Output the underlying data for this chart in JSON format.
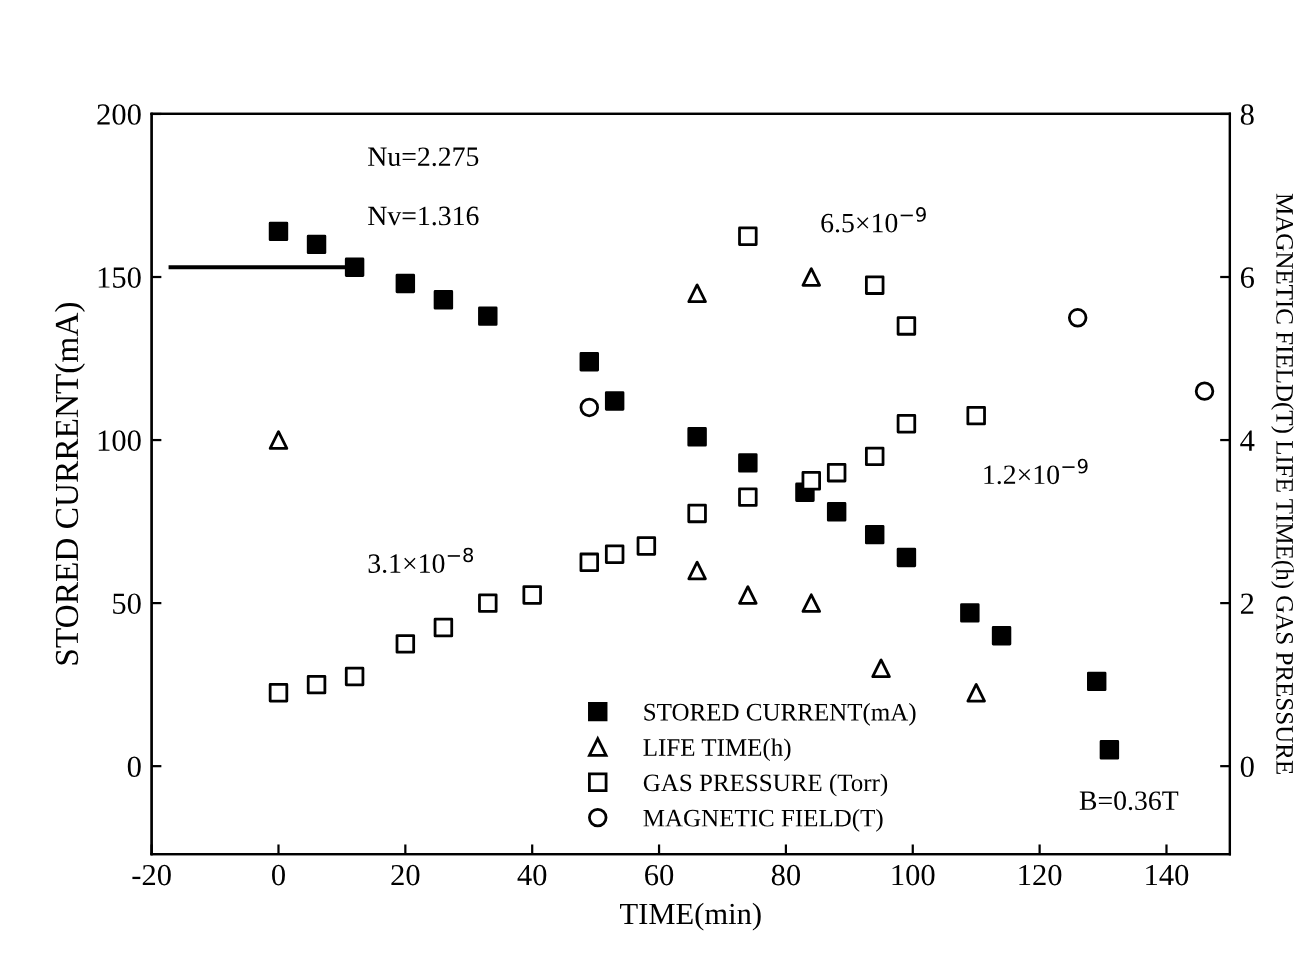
{
  "chart_data": {
    "type": "scatter",
    "xlabel": "TIME(min)",
    "ylabel": "STORED CURRENT(mA)",
    "y2label": "MAGNETIC FIELD(T) LIFE TIME(h) GAS PRESSURE",
    "xlim": [
      -20,
      150
    ],
    "xticks": [
      -20,
      0,
      20,
      40,
      60,
      80,
      100,
      120,
      140
    ],
    "ylim": [
      -27,
      200
    ],
    "yticks": [
      0,
      50,
      100,
      150,
      200
    ],
    "y2lim": [
      -1.08,
      8
    ],
    "y2ticks": [
      0,
      2,
      4,
      6,
      8
    ],
    "legend": "bottom",
    "grid": false,
    "series": [
      {
        "name": "STORED CURRENT(mA)",
        "marker": "square",
        "color": "#000000",
        "x": [
          0,
          6,
          12,
          20,
          26,
          33,
          49,
          53,
          66,
          74,
          83,
          88,
          94,
          99,
          109,
          114,
          129,
          131
        ],
        "values": [
          164,
          160,
          153,
          148,
          143,
          138,
          124,
          112,
          101,
          93,
          84,
          78,
          71,
          64,
          47,
          40,
          26,
          5
        ]
      },
      {
        "name": "LIFE TIME(h)",
        "marker": "triangle",
        "color": "#000000",
        "axis": "y2",
        "x": [
          0,
          66,
          84,
          66,
          74,
          84,
          95,
          110
        ],
        "values": [
          4.0,
          5.8,
          6.0,
          2.4,
          2.1,
          2.0,
          1.2,
          0.9
        ]
      },
      {
        "name": "GAS PRESSURE (Torr)",
        "marker": "square",
        "color": "#000000",
        "axis": "y2",
        "x": [
          0,
          6,
          12,
          20,
          26,
          33,
          40,
          49,
          53,
          58,
          66,
          74,
          84,
          88,
          94,
          99,
          110,
          74,
          94,
          99
        ],
        "values": [
          0.9,
          1.0,
          1.1,
          1.5,
          1.7,
          2.0,
          2.1,
          2.5,
          2.6,
          2.7,
          3.1,
          3.3,
          3.5,
          3.6,
          3.8,
          4.2,
          4.3,
          6.5,
          5.9,
          5.4
        ]
      },
      {
        "name": "MAGNETIC FIELD(T)",
        "marker": "circle",
        "color": "#000000",
        "axis": "y2",
        "x": [
          49,
          126,
          146
        ],
        "values": [
          4.4,
          5.5,
          4.6
        ]
      },
      {
        "type": "line",
        "marker": "none",
        "color": "#000000",
        "x": [
          -17,
          12
        ],
        "values": [
          153,
          153
        ]
      }
    ],
    "annotations": [
      "Nu=2.275",
      "Nv=1.316",
      "6.5×10$^{−9}$",
      "3.1×10$^{−8}$",
      "1.2×10$^{−9}$",
      "B=0.36T"
    ]
  }
}
